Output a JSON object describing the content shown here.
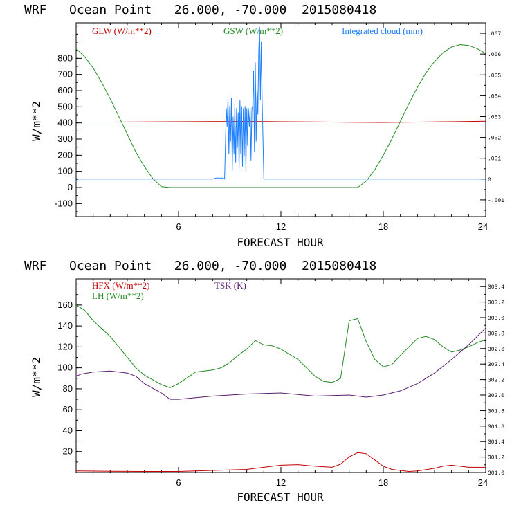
{
  "chart_data": [
    {
      "type": "line",
      "title": "WRF   Ocean Point   26.000, -70.000  2015080418",
      "xlabel": "FORECAST HOUR",
      "ylabel": "W/m**2",
      "xlim": [
        0,
        24
      ],
      "ylim": [
        -180,
        1020
      ],
      "xticks": [
        "6",
        "12",
        "18",
        "24"
      ],
      "yticks": [
        "-100",
        "0",
        "100",
        "200",
        "300",
        "400",
        "500",
        "600",
        "700",
        "800"
      ],
      "y2lim": [
        -0.0018,
        0.0075
      ],
      "y2ticks": [
        "-.001",
        "0",
        ".001",
        ".002",
        ".003",
        ".004",
        ".005",
        ".006",
        ".007"
      ],
      "series": [
        {
          "name": "GLW (W/m**2)",
          "color": "#c00000",
          "axis": "left",
          "x": [
            0,
            2,
            4,
            6,
            8,
            10,
            12,
            14,
            16,
            18,
            20,
            22,
            24
          ],
          "values": [
            405,
            405,
            406,
            407,
            408,
            409,
            407,
            406,
            404,
            403,
            405,
            407,
            410
          ]
        },
        {
          "name": "GSW (W/m**2)",
          "color": "#228b22",
          "axis": "left",
          "x": [
            0,
            0.5,
            1,
            1.5,
            2,
            2.5,
            3,
            3.5,
            4,
            4.5,
            5,
            5.5,
            16.5,
            17,
            17.5,
            18,
            18.5,
            19,
            19.5,
            20,
            20.5,
            21,
            21.5,
            22,
            22.5,
            23,
            23.5,
            24
          ],
          "values": [
            860,
            810,
            740,
            650,
            550,
            440,
            330,
            220,
            130,
            55,
            5,
            0,
            0,
            40,
            110,
            200,
            300,
            410,
            520,
            620,
            710,
            780,
            835,
            870,
            885,
            880,
            860,
            830
          ]
        },
        {
          "name": "Integrated cloud (mm)",
          "color": "#1e7fff",
          "axis": "right",
          "x": [
            0,
            8.0,
            8.2,
            8.6,
            8.7,
            8.8,
            8.85,
            8.9,
            8.95,
            9.0,
            9.05,
            9.1,
            9.15,
            9.2,
            9.25,
            9.3,
            9.35,
            9.4,
            9.45,
            9.5,
            9.55,
            9.6,
            9.65,
            9.7,
            9.75,
            9.8,
            9.85,
            9.9,
            9.95,
            10.0,
            10.05,
            10.1,
            10.15,
            10.2,
            10.25,
            10.3,
            10.35,
            10.4,
            10.45,
            10.5,
            10.55,
            10.6,
            10.65,
            10.7,
            10.75,
            10.8,
            10.85,
            10.9,
            11.0,
            24
          ],
          "values": [
            0,
            0,
            5e-05,
            5e-05,
            0,
            0.0034,
            0.0025,
            0.0039,
            0.0012,
            0.0035,
            0.0018,
            0.0039,
            0.0004,
            0.003,
            0.0012,
            0.0036,
            0.0008,
            0.0034,
            0.0015,
            0.0032,
            0.0005,
            0.0038,
            0.0012,
            0.0035,
            0.0006,
            0.0034,
            0.0011,
            0.0035,
            0.0004,
            0.0034,
            0.0016,
            0.0034,
            0.0025,
            0.0034,
            0.0009,
            0.0034,
            0.0035,
            0.0052,
            0.0013,
            0.0056,
            0.0018,
            0.0044,
            0.0031,
            0.0061,
            0.0073,
            0.0038,
            0.0066,
            0.0038,
            0,
            0
          ]
        }
      ]
    },
    {
      "type": "line",
      "title": "WRF   Ocean Point   26.000, -70.000  2015080418",
      "xlabel": "FORECAST HOUR",
      "ylabel": "W/m**2",
      "xlim": [
        0,
        24
      ],
      "ylim": [
        0,
        185
      ],
      "xticks": [
        "6",
        "12",
        "18",
        "24"
      ],
      "yticks": [
        "20",
        "40",
        "60",
        "80",
        "100",
        "120",
        "140",
        "160"
      ],
      "y2lim": [
        301.0,
        303.5
      ],
      "y2ticks": [
        "301.0",
        "301.2",
        "301.4",
        "301.6",
        "301.8",
        "302.0",
        "302.2",
        "302.4",
        "302.6",
        "302.8",
        "303.0",
        "303.2",
        "303.4"
      ],
      "series": [
        {
          "name": "HFX (W/m**2)",
          "color": "#c00000",
          "axis": "left",
          "x": [
            0,
            2,
            4,
            6,
            8,
            10,
            11,
            12,
            13,
            14,
            15,
            15.5,
            16,
            16.5,
            17,
            17.5,
            18,
            18.5,
            19,
            19.5,
            20,
            21,
            21.5,
            22,
            22.5,
            23,
            24
          ],
          "values": [
            1.5,
            1.2,
            1,
            1,
            2,
            3,
            5,
            7,
            7.5,
            6,
            5,
            8,
            15,
            19,
            18,
            12,
            6,
            3,
            2,
            1,
            1.5,
            4,
            6,
            7,
            6,
            5,
            5
          ]
        },
        {
          "name": "LH  (W/m**2)",
          "color": "#228b22",
          "axis": "left",
          "x": [
            0,
            0.5,
            1,
            2,
            3,
            3.5,
            4,
            5,
            5.5,
            6,
            7,
            8,
            8.5,
            9,
            9.5,
            10,
            10.5,
            11,
            11.5,
            12,
            12.5,
            13,
            13.5,
            14,
            14.5,
            15,
            15.5,
            16,
            16.5,
            17,
            17.5,
            18,
            18.5,
            19,
            19.5,
            20,
            20.5,
            21,
            21.5,
            22,
            22.5,
            23,
            23.5,
            24
          ],
          "values": [
            160,
            155,
            145,
            130,
            110,
            100,
            93,
            84,
            81,
            85,
            96,
            98,
            100,
            105,
            112,
            118,
            126,
            122,
            121,
            118,
            113,
            108,
            100,
            92,
            87,
            86,
            90,
            145,
            147,
            125,
            108,
            101,
            103,
            112,
            120,
            128,
            130,
            127,
            120,
            115,
            117,
            120,
            124,
            127
          ]
        },
        {
          "name": "TSK (K)",
          "color": "#5a1a6e",
          "axis": "left",
          "x": [
            0,
            0.3,
            1,
            2,
            3,
            3.5,
            4,
            5,
            5.5,
            6,
            8,
            10,
            12,
            14,
            16,
            17,
            18,
            19,
            20,
            21,
            22,
            23,
            24
          ],
          "values": [
            92,
            94,
            96,
            97,
            95,
            92,
            85,
            76,
            70,
            70,
            73,
            75,
            76,
            73,
            74,
            72,
            74,
            78,
            85,
            95,
            108,
            122,
            138
          ]
        }
      ]
    }
  ]
}
